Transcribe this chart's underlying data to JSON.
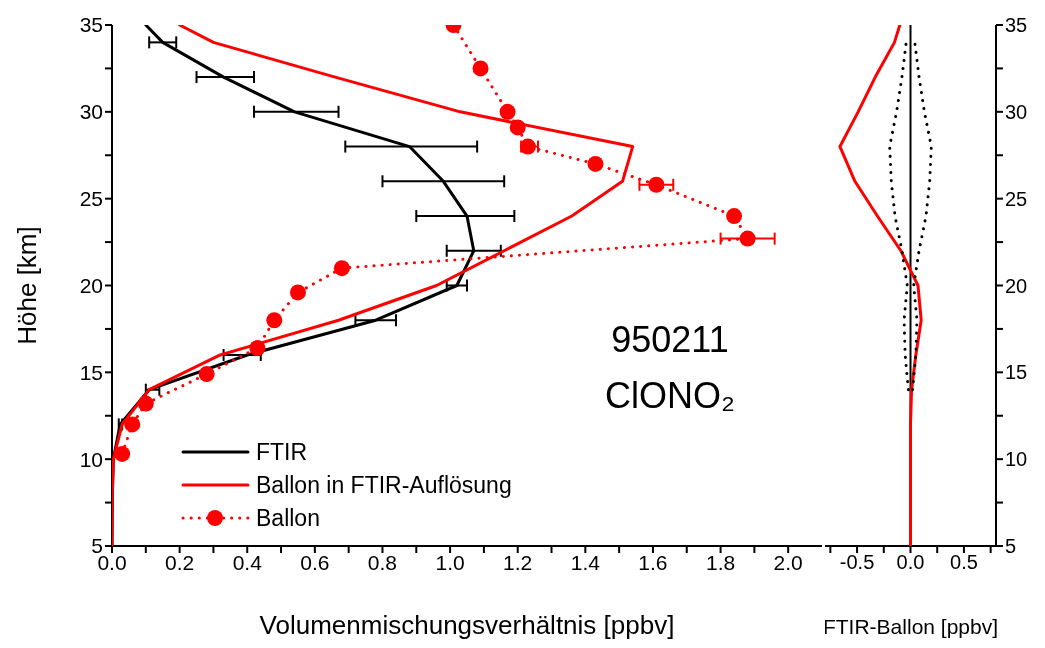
{
  "chart_data": [
    {
      "type": "line",
      "xlabel": "Volumenmischungsverhältnis [ppbv]",
      "ylabel": "Höhe [km]",
      "annotations": [
        "950211",
        "ClONO₂"
      ],
      "xlim": [
        0,
        2.1
      ],
      "ylim": [
        5,
        35
      ],
      "xticks": [
        {
          "value": 0,
          "label": "0.0"
        },
        {
          "value": 0.1,
          "label": null
        },
        {
          "value": 0.2,
          "label": "0.2"
        },
        {
          "value": 0.3,
          "label": null
        },
        {
          "value": 0.4,
          "label": "0.4"
        },
        {
          "value": 0.5,
          "label": null
        },
        {
          "value": 0.6,
          "label": "0.6"
        },
        {
          "value": 0.7,
          "label": null
        },
        {
          "value": 0.8,
          "label": "0.8"
        },
        {
          "value": 0.9,
          "label": null
        },
        {
          "value": 1.0,
          "label": "1.0"
        },
        {
          "value": 1.1,
          "label": null
        },
        {
          "value": 1.2,
          "label": "1.2"
        },
        {
          "value": 1.3,
          "label": null
        },
        {
          "value": 1.4,
          "label": "1.4"
        },
        {
          "value": 1.5,
          "label": null
        },
        {
          "value": 1.6,
          "label": "1.6"
        },
        {
          "value": 1.7,
          "label": null
        },
        {
          "value": 1.8,
          "label": "1.8"
        },
        {
          "value": 1.9,
          "label": null
        },
        {
          "value": 2.0,
          "label": "2.0"
        }
      ],
      "yticks": [
        5,
        {
          "value": 7.5,
          "label": null
        },
        10,
        {
          "value": 12.5,
          "label": null
        },
        15,
        {
          "value": 17.5,
          "label": null
        },
        20,
        {
          "value": 22.5,
          "label": null
        },
        25,
        {
          "value": 27.5,
          "label": null
        },
        30,
        {
          "value": 32.5,
          "label": null
        },
        35
      ],
      "legend": "bottom left",
      "grid": false,
      "series": [
        {
          "name": "FTIR",
          "color": "#000000",
          "line_style": "solid",
          "marker": "none",
          "x": [
            0,
            0.001,
            0.004,
            0.024,
            0.11,
            0.4,
            0.78,
            1.02,
            1.07,
            1.05,
            0.98,
            0.88,
            0.54,
            0.33,
            0.15,
            0.1
          ],
          "values": [
            5,
            8,
            10,
            12,
            14,
            16,
            18,
            20,
            22,
            24,
            26,
            28,
            30,
            32,
            34,
            35
          ],
          "xerrors": [
            null,
            null,
            null,
            [
              0.02,
              0.03
            ],
            [
              0.1,
              0.14
            ],
            [
              0.33,
              0.44
            ],
            [
              0.72,
              0.84
            ],
            [
              0.99,
              1.05
            ],
            [
              0.99,
              1.15
            ],
            [
              0.9,
              1.19
            ],
            [
              0.8,
              1.16
            ],
            [
              0.69,
              1.08
            ],
            [
              0.42,
              0.67
            ],
            [
              0.25,
              0.42
            ],
            [
              0.11,
              0.19
            ],
            null
          ]
        },
        {
          "name": "Ballon in FTIR-Auflösung",
          "color": "#ff0000",
          "line_style": "solid",
          "marker": "none",
          "x": [
            0,
            0.001,
            0.004,
            0.03,
            0.11,
            0.32,
            0.67,
            0.96,
            1.16,
            1.36,
            1.51,
            1.54,
            1.03,
            0.66,
            0.3,
            0.2
          ],
          "values": [
            5,
            8,
            10,
            12,
            14,
            16,
            18,
            20,
            22,
            24,
            26,
            28,
            30,
            32,
            34,
            35
          ]
        },
        {
          "name": "Ballon",
          "color": "#ff0000",
          "line_style": "dotted",
          "marker": "circle",
          "x": [
            0.03,
            0.06,
            0.1,
            0.28,
            0.43,
            0.48,
            0.55,
            0.68,
            1.88,
            1.84,
            1.61,
            1.43,
            1.23,
            1.2,
            1.17,
            1.09,
            1.01
          ],
          "values": [
            10.3,
            12.0,
            13.2,
            14.9,
            16.4,
            18.0,
            19.6,
            21.0,
            22.7,
            24.0,
            25.8,
            27.0,
            28.0,
            29.1,
            30.0,
            32.5,
            35.0
          ],
          "xerrors": [
            null,
            null,
            null,
            null,
            null,
            null,
            null,
            null,
            [
              1.8,
              1.96
            ],
            null,
            [
              1.56,
              1.66
            ],
            null,
            [
              1.21,
              1.26
            ],
            null,
            null,
            null,
            null
          ]
        }
      ]
    },
    {
      "type": "line",
      "xlabel": "FTIR-Ballon [ppbv]",
      "xlim": [
        -0.8,
        0.8
      ],
      "ylim": [
        5,
        35
      ],
      "xticks": [
        {
          "value": -0.75,
          "label": null
        },
        {
          "value": -0.5,
          "label": "-0.5"
        },
        {
          "value": -0.25,
          "label": null
        },
        {
          "value": 0,
          "label": "0.0"
        },
        {
          "value": 0.25,
          "label": null
        },
        {
          "value": 0.5,
          "label": "0.5"
        },
        {
          "value": 0.75,
          "label": null
        }
      ],
      "yticks": [
        5,
        {
          "value": 7.5,
          "label": null
        },
        10,
        {
          "value": 12.5,
          "label": null
        },
        15,
        {
          "value": 17.5,
          "label": null
        },
        20,
        {
          "value": 22.5,
          "label": null
        },
        25,
        {
          "value": 27.5,
          "label": null
        },
        30,
        {
          "value": 32.5,
          "label": null
        },
        35
      ],
      "grid": false,
      "ref_lines": [
        {
          "axis": "x",
          "value": 0,
          "color": "#000000",
          "line_style": "solid"
        }
      ],
      "series": [
        {
          "color": "#ff0000",
          "line_style": "solid",
          "marker": "none",
          "x": [
            0,
            0,
            0,
            0.01,
            0.05,
            0.1,
            0.07,
            -0.09,
            -0.31,
            -0.52,
            -0.66,
            -0.49,
            -0.33,
            -0.15,
            -0.1
          ],
          "values": [
            5,
            10,
            12,
            14,
            16,
            18,
            20,
            22,
            24,
            26,
            28,
            30,
            32,
            34,
            35
          ]
        },
        {
          "color": "#000000",
          "line_style": "dotted",
          "marker": "none",
          "x": [
            0.02,
            0.05,
            0.06,
            0.03,
            0.08,
            0.145,
            0.18,
            0.195,
            0.13,
            0.08,
            0.04
          ],
          "values": [
            14,
            16,
            18,
            20,
            22,
            24,
            26,
            28,
            30,
            32,
            34
          ]
        },
        {
          "color": "#000000",
          "line_style": "dotted",
          "marker": "none",
          "x": [
            -0.02,
            -0.05,
            -0.06,
            -0.03,
            -0.08,
            -0.145,
            -0.18,
            -0.195,
            -0.13,
            -0.08,
            -0.04
          ],
          "values": [
            14,
            16,
            18,
            20,
            22,
            24,
            26,
            28,
            30,
            32,
            34
          ]
        }
      ]
    }
  ]
}
